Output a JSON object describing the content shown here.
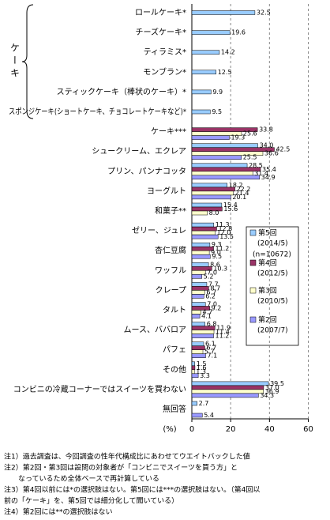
{
  "chart_data": {
    "type": "bar",
    "orientation": "horizontal",
    "group_label": "ケーキ",
    "x_label": "(%)",
    "categories": [
      "ロールケーキ*",
      "チーズケーキ*",
      "ティラミス*",
      "モンブラン*",
      "スティックケーキ（棒状のケーキ）*",
      "スポンジケーキ(ショートケーキ、チョコレートケーキなど)*",
      "ケーキ***",
      "シュークリーム、エクレア",
      "プリン、パンナコッタ",
      "ヨーグルト",
      "和菓子**",
      "ゼリー、ジュレ",
      "杏仁豆腐",
      "ワッフル",
      "クレープ",
      "タルト",
      "ムース、ババロア",
      "パフェ",
      "その他",
      "コンビニの冷蔵コーナーではスイーツを買わない",
      "無回答"
    ],
    "series": [
      {
        "name": "第5回",
        "period": "(2014/5)",
        "n": "(n=10672)",
        "color": "#99ccff",
        "values": [
          32.5,
          19.6,
          14.2,
          12.5,
          9.9,
          9.5,
          null,
          34.0,
          28.5,
          18.2,
          15.4,
          11.3,
          9.3,
          8.6,
          7.7,
          7.0,
          6.8,
          6.1,
          1.5,
          39.5,
          2.7
        ],
        "value_labels": [
          "32.5",
          "19.6",
          "14.2",
          "12.5",
          "9.9",
          "9.5",
          null,
          "34.0",
          "28.5",
          "18.2",
          "15.4",
          "11.3",
          "9.3",
          "8.6",
          "7.7",
          "7.0",
          "6.8",
          "6.1",
          "1.5",
          "39.5",
          "2.7"
        ]
      },
      {
        "name": "第4回",
        "period": "(2012/5)",
        "color": "#993366",
        "values": [
          null,
          null,
          null,
          null,
          null,
          null,
          33.8,
          42.5,
          35.4,
          22.2,
          15.6,
          12.8,
          11.2,
          10.3,
          8.7,
          9.2,
          11.9,
          6.7,
          1.6,
          37.0,
          null
        ],
        "value_labels": [
          null,
          null,
          null,
          null,
          null,
          null,
          "33.8",
          "42.5",
          "35.4",
          "22.2",
          "15.6",
          "12.8",
          "11.2",
          "10.3",
          "8.7",
          "9.2",
          "11.9",
          "6.7",
          "1.6",
          "37.0",
          null
        ]
      },
      {
        "name": "第3回",
        "period": "(2010/5)",
        "color": "#ffffcc",
        "values": [
          null,
          null,
          null,
          null,
          null,
          null,
          25.6,
          36.6,
          31.4,
          21.4,
          8.0,
          12.0,
          9.0,
          7.0,
          6.7,
          4.7,
          11.4,
          5.7,
          1.3,
          36.9,
          null
        ],
        "value_labels": [
          null,
          null,
          null,
          null,
          null,
          null,
          "25.6",
          "36.6",
          "31.4",
          "21.4",
          "8.0",
          "12.0",
          "9.0",
          "7.0",
          "6.7",
          "4.7",
          "11.4",
          "5.7",
          "1.3",
          "36.9",
          null
        ]
      },
      {
        "name": "第2回",
        "period": "(2007/7)",
        "color": "#9999ff",
        "values": [
          null,
          null,
          null,
          null,
          null,
          null,
          19.3,
          25.5,
          34.9,
          20.1,
          null,
          13.5,
          9.5,
          5.2,
          6.2,
          4.1,
          11.2,
          7.1,
          3.3,
          34.3,
          5.4
        ],
        "value_labels": [
          null,
          null,
          null,
          null,
          null,
          null,
          "19.3",
          "25.5",
          "34.9",
          "20.1",
          null,
          "13.5",
          "9.5",
          "5.2",
          "6.2",
          "4.1",
          "11.2",
          "7.1",
          "3.3",
          "34.3",
          "5.4"
        ]
      }
    ],
    "xlim": [
      0,
      60
    ],
    "xticks": [
      0,
      20,
      40,
      60
    ],
    "grid": true,
    "notes": [
      "注1）過去調査は、今回調査の性年代構成比にあわせてウエイトバックした値",
      "注2）第2回・第3回は設問の対象者が「コンビニでスイーツを買う方」と",
      "　　なっているため全体ベースで再計算している",
      "注3）第4回以前には*の選択肢はない。第5回には***の選択肢はない。（第4回以",
      "前の「ケーキ」を、第5回では細分化して聞いている）",
      "注4）第2回には**の選択肢はない"
    ]
  }
}
